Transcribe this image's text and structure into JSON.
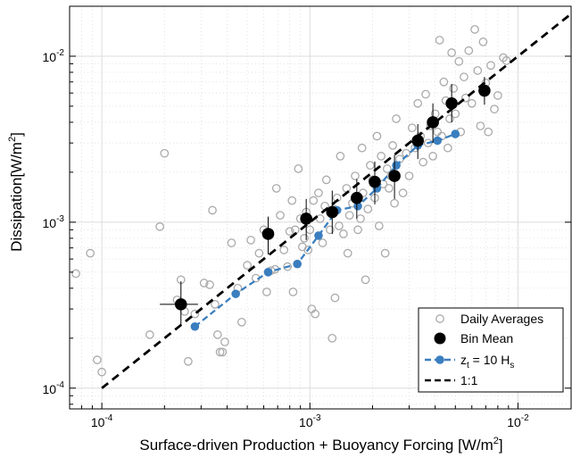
{
  "chart_data": {
    "type": "scatter",
    "xlabel": "Surface-driven Production + Buoyancy Forcing [W/m",
    "xlabel_sup": "2",
    "xlabel_end": "]",
    "ylabel": "Dissipation[W/m",
    "ylabel_sup": "2",
    "ylabel_end": "]",
    "xscale": "log",
    "yscale": "log",
    "xlim": [
      7e-05,
      0.018
    ],
    "ylim": [
      7.5e-05,
      0.02
    ],
    "grid": true,
    "legend_position": "bottom-right",
    "x_ticks": [
      {
        "value": 0.0001,
        "base": "10",
        "exp": "-4"
      },
      {
        "value": 0.001,
        "base": "10",
        "exp": "-3"
      },
      {
        "value": 0.01,
        "base": "10",
        "exp": "-2"
      }
    ],
    "y_ticks": [
      {
        "value": 0.0001,
        "base": "10",
        "exp": "-4"
      },
      {
        "value": 0.001,
        "base": "10",
        "exp": "-3"
      },
      {
        "value": 0.01,
        "base": "10",
        "exp": "-2"
      }
    ],
    "legend": {
      "daily": "Daily Averages",
      "bin": "Bin Mean",
      "zt_main": "z",
      "zt_sub1": "t",
      "zt_mid": " = 10 H",
      "zt_sub2": "s",
      "oneone": "1:1"
    },
    "colors": {
      "daily": "#aaaaaa",
      "bin": "#000000",
      "zt": "#3a7ebf",
      "oneone": "#000000",
      "grid": "#dcdcdc"
    },
    "series": [
      {
        "name": "Daily Averages",
        "points": [
          [
            7.5e-05,
            0.00049
          ],
          [
            8.8e-05,
            0.00065
          ],
          [
            9.5e-05,
            0.000148
          ],
          [
            0.0001,
            0.000125
          ],
          [
            0.00017,
            0.00021
          ],
          [
            0.00019,
            0.00094
          ],
          [
            0.0002,
            0.0026
          ],
          [
            0.00023,
            0.00034
          ],
          [
            0.00024,
            0.00045
          ],
          [
            0.00025,
            0.00029
          ],
          [
            0.00026,
            0.000145
          ],
          [
            0.00028,
            0.00028
          ],
          [
            0.00031,
            0.00043
          ],
          [
            0.00033,
            0.00042
          ],
          [
            0.00034,
            0.00118
          ],
          [
            0.00035,
            0.00032
          ],
          [
            0.00036,
            0.00021
          ],
          [
            0.00037,
            0.000165
          ],
          [
            0.00038,
            0.000165
          ],
          [
            0.00039,
            0.00019
          ],
          [
            0.00042,
            0.00075
          ],
          [
            0.00045,
            0.0004
          ],
          [
            0.00047,
            0.00025
          ],
          [
            0.0005,
            0.00055
          ],
          [
            0.00052,
            0.00078
          ],
          [
            0.00055,
            0.00046
          ],
          [
            0.00057,
            0.00065
          ],
          [
            0.0006,
            0.0009
          ],
          [
            0.00062,
            0.00038
          ],
          [
            0.00065,
            0.00051
          ],
          [
            0.00068,
            0.00052
          ],
          [
            0.00069,
            0.0016
          ],
          [
            0.00072,
            0.0011
          ],
          [
            0.00075,
            0.00068
          ],
          [
            0.00078,
            0.00054
          ],
          [
            0.0008,
            0.00088
          ],
          [
            0.00082,
            0.00135
          ],
          [
            0.00083,
            0.00038
          ],
          [
            0.00085,
            0.0009
          ],
          [
            0.00088,
            0.0021
          ],
          [
            0.0009,
            0.00105
          ],
          [
            0.00092,
            0.00071
          ],
          [
            0.00094,
            0.0008
          ],
          [
            0.00096,
            0.00115
          ],
          [
            0.00098,
            0.00068
          ],
          [
            0.001,
            0.0009
          ],
          [
            0.00102,
            0.0003
          ],
          [
            0.00104,
            0.00135
          ],
          [
            0.00106,
            0.00028
          ],
          [
            0.0011,
            0.0015
          ],
          [
            0.00112,
            0.00105
          ],
          [
            0.00115,
            0.00075
          ],
          [
            0.00118,
            0.00125
          ],
          [
            0.0012,
            0.0018
          ],
          [
            0.00125,
            0.0009
          ],
          [
            0.00128,
            0.0002
          ],
          [
            0.0013,
            0.0012
          ],
          [
            0.00132,
            0.00035
          ],
          [
            0.00135,
            0.0014
          ],
          [
            0.00138,
            0.00095
          ],
          [
            0.0014,
            0.0025
          ],
          [
            0.00145,
            0.00085
          ],
          [
            0.0015,
            0.0016
          ],
          [
            0.00152,
            0.00065
          ],
          [
            0.00155,
            0.0011
          ],
          [
            0.0016,
            0.0013
          ],
          [
            0.00165,
            0.0019
          ],
          [
            0.0017,
            0.0009
          ],
          [
            0.00175,
            0.00105
          ],
          [
            0.00178,
            0.0028
          ],
          [
            0.0018,
            0.0015
          ],
          [
            0.00185,
            0.00045
          ],
          [
            0.0019,
            0.0012
          ],
          [
            0.00195,
            0.0022
          ],
          [
            0.002,
            0.0018
          ],
          [
            0.00205,
            0.0014
          ],
          [
            0.0021,
            0.0033
          ],
          [
            0.00215,
            0.00095
          ],
          [
            0.0022,
            0.0025
          ],
          [
            0.00225,
            0.0017
          ],
          [
            0.0023,
            0.00065
          ],
          [
            0.00235,
            0.0021
          ],
          [
            0.0024,
            0.0016
          ],
          [
            0.00245,
            0.0019
          ],
          [
            0.0025,
            0.0029
          ],
          [
            0.00255,
            0.0013
          ],
          [
            0.0026,
            0.0042
          ],
          [
            0.0027,
            0.0024
          ],
          [
            0.0028,
            0.0015
          ],
          [
            0.0029,
            0.0026
          ],
          [
            0.003,
            0.0019
          ],
          [
            0.0031,
            0.0037
          ],
          [
            0.0032,
            0.0028
          ],
          [
            0.0033,
            0.0052
          ],
          [
            0.0034,
            0.0033
          ],
          [
            0.0035,
            0.0023
          ],
          [
            0.0036,
            0.0059
          ],
          [
            0.0037,
            0.003
          ],
          [
            0.0038,
            0.0038
          ],
          [
            0.0039,
            0.0025
          ],
          [
            0.004,
            0.0045
          ],
          [
            0.0041,
            0.0035
          ],
          [
            0.0042,
            0.0125
          ],
          [
            0.0043,
            0.0033
          ],
          [
            0.0044,
            0.007
          ],
          [
            0.0045,
            0.0054
          ],
          [
            0.0046,
            0.0028
          ],
          [
            0.0047,
            0.0042
          ],
          [
            0.0048,
            0.0105
          ],
          [
            0.0049,
            0.0064
          ],
          [
            0.005,
            0.0045
          ],
          [
            0.0052,
            0.0093
          ],
          [
            0.0053,
            0.0035
          ],
          [
            0.0055,
            0.0075
          ],
          [
            0.0056,
            0.0056
          ],
          [
            0.0058,
            0.0108
          ],
          [
            0.006,
            0.0052
          ],
          [
            0.0062,
            0.0145
          ],
          [
            0.0064,
            0.0082
          ],
          [
            0.0066,
            0.0038
          ],
          [
            0.0068,
            0.0122
          ],
          [
            0.007,
            0.0069
          ],
          [
            0.0072,
            0.0035
          ],
          [
            0.0074,
            0.0088
          ],
          [
            0.0077,
            0.0048
          ],
          [
            0.008,
            0.0058
          ],
          [
            0.0085,
            0.0098
          ],
          [
            0.0088,
            0.0094
          ]
        ]
      },
      {
        "name": "Bin Mean",
        "points": [
          {
            "x": 0.00024,
            "y": 0.00032,
            "xerr": [
              0.00019,
              0.00029
            ],
            "yerr": [
              0.00024,
              0.00044
            ]
          },
          {
            "x": 0.00063,
            "y": 0.00085,
            "xerr": [
              0.00061,
              0.00065
            ],
            "yerr": [
              0.00064,
              0.00108
            ]
          },
          {
            "x": 0.00096,
            "y": 0.00105,
            "xerr": [
              0.00093,
              0.00099
            ],
            "yerr": [
              0.00078,
              0.00138
            ]
          },
          {
            "x": 0.00128,
            "y": 0.00115,
            "xerr": [
              0.00124,
              0.00132
            ],
            "yerr": [
              0.00085,
              0.00155
            ]
          },
          {
            "x": 0.00168,
            "y": 0.0014,
            "xerr": [
              0.00163,
              0.00173
            ],
            "yerr": [
              0.00105,
              0.00182
            ]
          },
          {
            "x": 0.00205,
            "y": 0.00175,
            "xerr": [
              0.00199,
              0.00211
            ],
            "yerr": [
              0.00128,
              0.00232
            ]
          },
          {
            "x": 0.00255,
            "y": 0.0019,
            "xerr": [
              0.00248,
              0.00262
            ],
            "yerr": [
              0.00138,
              0.00255
            ]
          },
          {
            "x": 0.0033,
            "y": 0.0031,
            "xerr": [
              0.0032,
              0.0034
            ],
            "yerr": [
              0.0024,
              0.0039
            ]
          },
          {
            "x": 0.0039,
            "y": 0.004,
            "xerr": [
              0.0038,
              0.004
            ],
            "yerr": [
              0.003,
              0.0052
            ]
          },
          {
            "x": 0.0048,
            "y": 0.0052,
            "xerr": [
              0.0047,
              0.0049
            ],
            "yerr": [
              0.004,
              0.0068
            ]
          },
          {
            "x": 0.0069,
            "y": 0.0062,
            "xerr": [
              0.0068,
              0.007
            ],
            "yerr": [
              0.0051,
              0.0075
            ]
          }
        ]
      },
      {
        "name": "z_t = 10 H_s",
        "points": [
          [
            0.00028,
            0.000235
          ],
          [
            0.00044,
            0.00037
          ],
          [
            0.00063,
            0.0005
          ],
          [
            0.00087,
            0.00056
          ],
          [
            0.0011,
            0.00083
          ],
          [
            0.00135,
            0.00118
          ],
          [
            0.0017,
            0.00125
          ],
          [
            0.0021,
            0.0016
          ],
          [
            0.0026,
            0.0022
          ],
          [
            0.0033,
            0.0029
          ],
          [
            0.0041,
            0.0031
          ],
          [
            0.005,
            0.0034
          ]
        ]
      },
      {
        "name": "1:1",
        "points": [
          [
            0.0001,
            0.0001
          ],
          [
            0.018,
            0.018
          ]
        ]
      }
    ]
  }
}
